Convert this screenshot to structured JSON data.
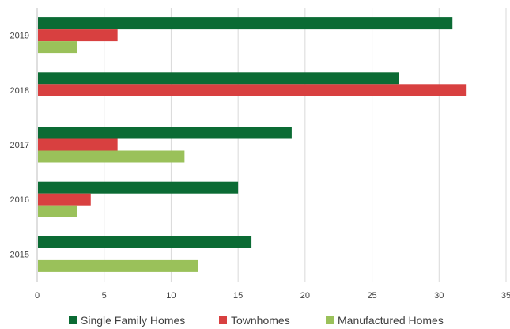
{
  "chart_data": {
    "type": "bar",
    "orientation": "horizontal",
    "categories": [
      "2019",
      "2018",
      "2017",
      "2016",
      "2015"
    ],
    "series": [
      {
        "name": "Single Family Homes",
        "color": "#0b6b34",
        "values": [
          31,
          27,
          19,
          15,
          16
        ]
      },
      {
        "name": "Townhomes",
        "color": "#d84040",
        "values": [
          6,
          32,
          6,
          4,
          0
        ]
      },
      {
        "name": "Manufactured Homes",
        "color": "#9ac15a",
        "values": [
          3,
          0,
          11,
          3,
          12
        ]
      }
    ],
    "xlim": [
      0,
      35
    ],
    "xticks": [
      "0",
      "5",
      "10",
      "15",
      "20",
      "25",
      "30",
      "35"
    ],
    "grid": "vertical",
    "legend_position": "bottom"
  }
}
